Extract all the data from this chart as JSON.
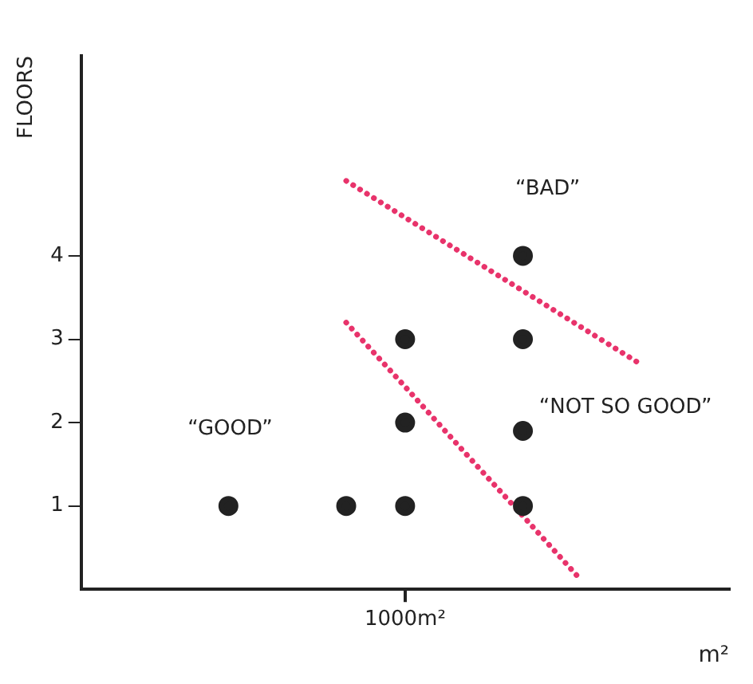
{
  "chart_data": {
    "type": "scatter",
    "xlabel": "m²",
    "ylabel": "FLOORS",
    "categories": [
      null,
      null,
      null,
      null,
      null,
      "1000m²",
      null,
      null,
      null,
      null,
      null
    ],
    "ylim": [
      0,
      6.4
    ],
    "yticks": [
      1,
      2,
      3,
      4
    ],
    "grid": false,
    "legend": false,
    "marker": "circle",
    "series": [
      {
        "color": "#222222",
        "values": [
          null,
          null,
          1,
          null,
          1,
          1,
          null,
          1,
          null,
          null,
          null
        ]
      },
      {
        "color": "#222222",
        "values": [
          null,
          null,
          null,
          null,
          null,
          2,
          null,
          1.9,
          null,
          null,
          null
        ]
      },
      {
        "color": "#222222",
        "values": [
          null,
          null,
          null,
          null,
          null,
          3,
          null,
          3,
          null,
          null,
          null
        ]
      },
      {
        "color": "#222222",
        "values": [
          null,
          null,
          null,
          null,
          null,
          null,
          null,
          4,
          null,
          null,
          null
        ]
      },
      {
        "type": "line",
        "line_style": "dotted",
        "marker": "none",
        "color": "#e8336b",
        "values": [
          null,
          null,
          null,
          null,
          4.9,
          4.46,
          4.02,
          3.58,
          3.14,
          2.7,
          null
        ]
      },
      {
        "type": "line",
        "line_style": "dotted",
        "marker": "none",
        "color": "#e8336b",
        "values": [
          null,
          null,
          null,
          null,
          3.2,
          2.43,
          1.65,
          0.88,
          0.1,
          null,
          null
        ]
      }
    ],
    "annotations": [
      "“BAD”",
      "“NOT SO GOOD”",
      "“GOOD”"
    ]
  }
}
